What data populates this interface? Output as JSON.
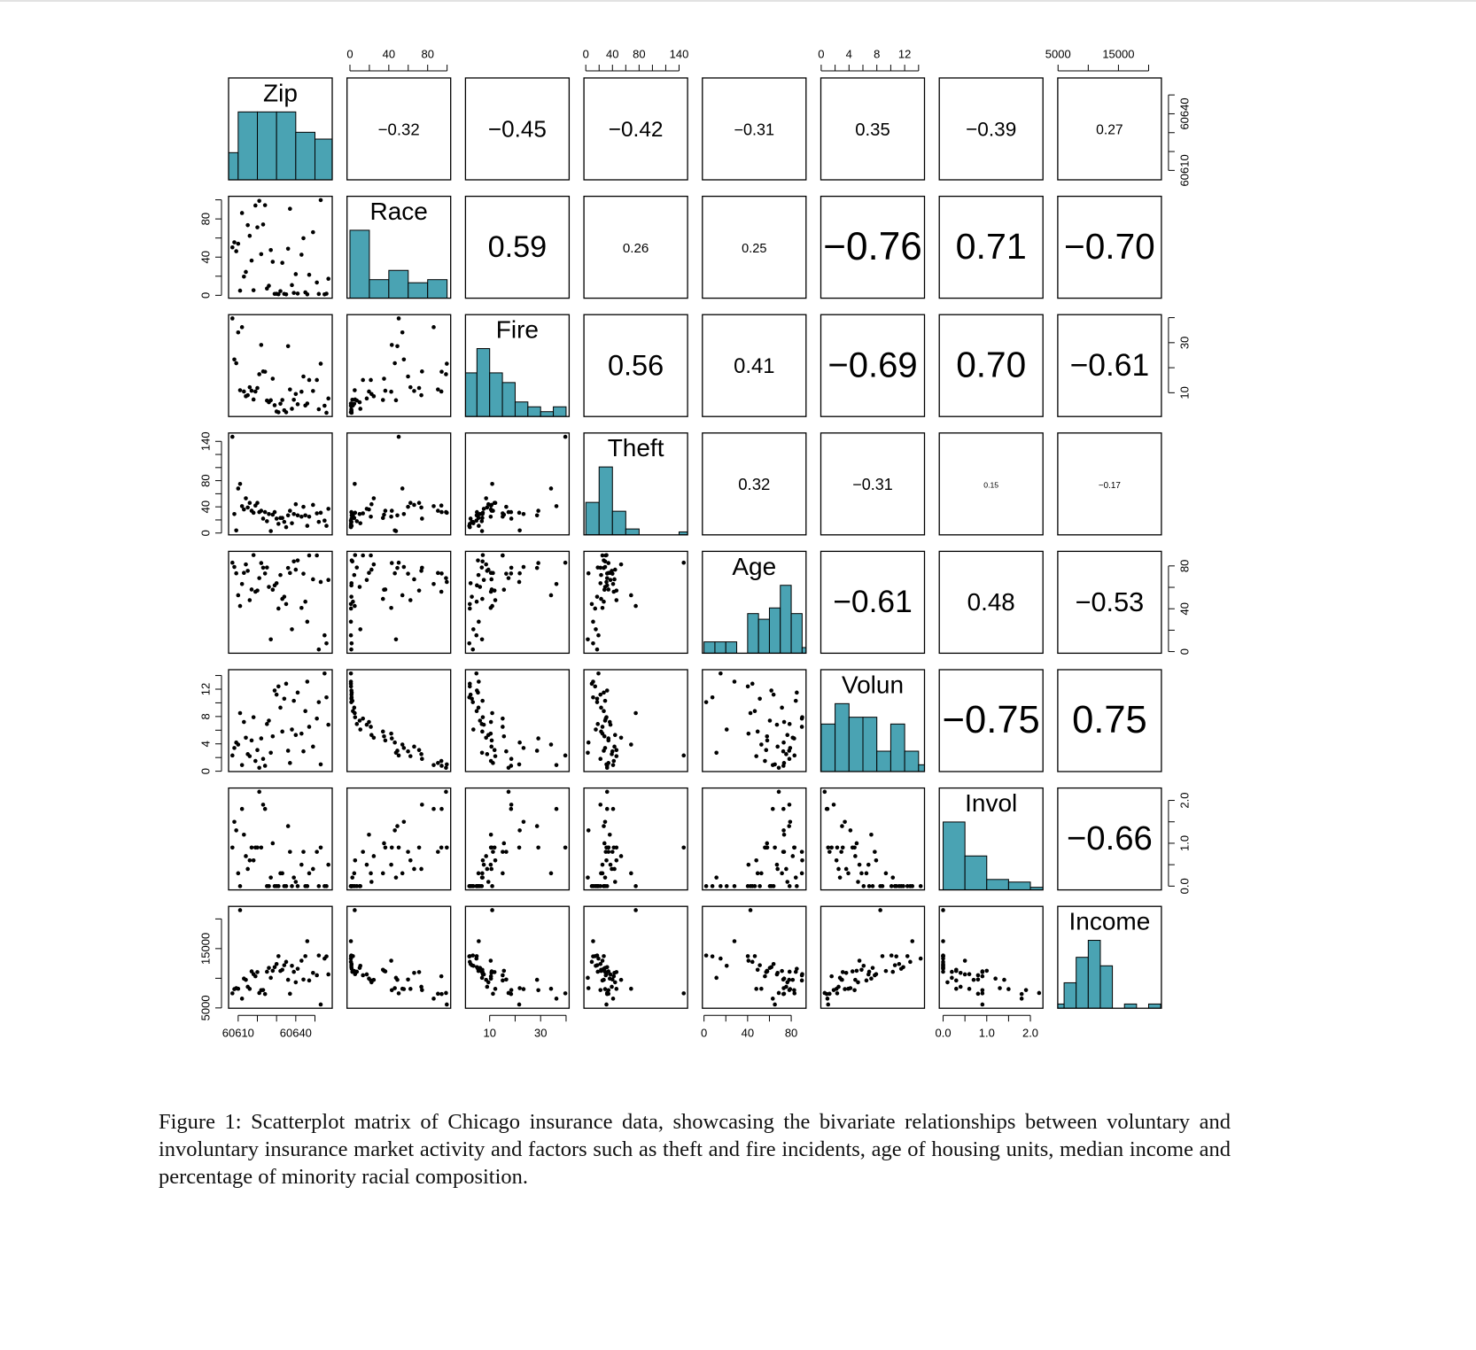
{
  "chart_data": {
    "type": "scatter_matrix",
    "caption": "Figure 1: Scatterplot matrix of Chicago insurance data, showcasing the bivariate relationships between voluntary and involuntary insurance market activity and factors such as theft and fire incidents, age of housing units, median income and percentage of minority racial composition.",
    "point_color": "#000000",
    "hist_color": "#4aa3b3",
    "variables": [
      {
        "name": "Zip",
        "lim": [
          60605,
          60659
        ],
        "ticks": [
          60610,
          60640
        ],
        "minor_ticks": [
          60620,
          60630,
          60650
        ],
        "values": [
          60626,
          60640,
          60613,
          60657,
          60614,
          60610,
          60611,
          60625,
          60618,
          60647,
          60622,
          60631,
          60646,
          60656,
          60630,
          60634,
          60641,
          60635,
          60639,
          60651,
          60644,
          60624,
          60612,
          60607,
          60623,
          60608,
          60616,
          60632,
          60609,
          60653,
          60615,
          60638,
          60629,
          60636,
          60621,
          60637,
          60652,
          60620,
          60619,
          60649,
          60617,
          60655,
          60643,
          60628,
          60627,
          60633,
          60645
        ],
        "hist": {
          "bins": [
            60600,
            60610,
            60620,
            60630,
            60640,
            60650,
            60660
          ],
          "counts": [
            4,
            10,
            10,
            10,
            7,
            6
          ]
        }
      },
      {
        "name": "Race",
        "lim": [
          -3,
          103.7
        ],
        "ticks": [
          0,
          40,
          80
        ],
        "minor_ticks": [
          20,
          60,
          100
        ],
        "values": [
          10.0,
          22.2,
          19.6,
          17.3,
          24.5,
          54.0,
          4.9,
          7.1,
          5.3,
          21.5,
          43.1,
          1.1,
          1.0,
          1.7,
          1.6,
          1.5,
          1.8,
          1.0,
          2.5,
          13.4,
          59.8,
          94.4,
          86.2,
          50.2,
          74.2,
          55.5,
          62.3,
          4.4,
          46.2,
          99.7,
          73.5,
          10.7,
          1.5,
          48.8,
          98.9,
          90.6,
          1.4,
          71.2,
          94.1,
          66.1,
          36.4,
          1.0,
          42.5,
          35.1,
          47.4,
          34.0,
          3.1
        ],
        "hist": {
          "bins": [
            0,
            20,
            40,
            60,
            80,
            100
          ],
          "counts": [
            22,
            6,
            9,
            5,
            6
          ]
        }
      },
      {
        "name": "Fire",
        "lim": [
          0.5,
          41.2
        ],
        "ticks": [
          10,
          30
        ],
        "minor_ticks": [
          20,
          40
        ],
        "values": [
          6.2,
          9.5,
          10.5,
          7.7,
          8.6,
          34.1,
          11.0,
          6.9,
          7.3,
          15.1,
          29.1,
          2.2,
          5.7,
          2.0,
          2.5,
          3.0,
          5.4,
          2.2,
          7.2,
          15.1,
          16.5,
          18.4,
          36.2,
          39.7,
          18.5,
          23.3,
          12.2,
          5.6,
          21.8,
          21.6,
          9.0,
          3.6,
          5.0,
          28.6,
          17.4,
          11.3,
          3.4,
          11.9,
          10.5,
          10.7,
          10.8,
          4.8,
          10.4,
          15.6,
          7.0,
          7.1,
          4.9
        ],
        "hist": {
          "bins": [
            0,
            5,
            10,
            15,
            20,
            25,
            30,
            35,
            40
          ],
          "counts": [
            9,
            14,
            9,
            7,
            3,
            2,
            1,
            2
          ]
        }
      },
      {
        "name": "Theft",
        "lim": [
          -2.8,
          152.8
        ],
        "ticks": [
          0,
          40,
          80,
          140
        ],
        "minor_ticks": [
          20,
          60,
          100,
          120
        ],
        "values": [
          29,
          44,
          36,
          37,
          53,
          68,
          75,
          18,
          31,
          25,
          34,
          14,
          11,
          11,
          22,
          17,
          27,
          9,
          29,
          30,
          40,
          32,
          41,
          147,
          22,
          29,
          46,
          23,
          4,
          31,
          39,
          15,
          32,
          27,
          32,
          34,
          17,
          46,
          42,
          43,
          34,
          19,
          25,
          28,
          3,
          23,
          27
        ],
        "hist": {
          "bins": [
            0,
            20,
            40,
            60,
            80,
            100,
            120,
            140,
            160
          ],
          "counts": [
            11,
            23,
            8,
            2,
            0,
            0,
            0,
            1
          ]
        }
      },
      {
        "name": "Age",
        "lim": [
          -1.5,
          93.6
        ],
        "ticks": [
          0,
          40,
          80
        ],
        "minor_ticks": [
          20,
          60
        ],
        "values": [
          60.4,
          76.5,
          73.5,
          66.9,
          81.4,
          52.6,
          42.6,
          78.5,
          90.1,
          89.8,
          82.7,
          40.2,
          27.9,
          7.7,
          63.8,
          51.2,
          85.1,
          44.4,
          84.2,
          89.8,
          72.7,
          72.9,
          63.1,
          83.0,
          78.3,
          79.0,
          48.0,
          71.5,
          73.1,
          65.0,
          75.4,
          20.8,
          61.8,
          78.1,
          68.6,
          73.4,
          2.0,
          57.0,
          55.9,
          67.5,
          58.0,
          15.2,
          40.8,
          57.8,
          11.4,
          49.2,
          46.6
        ],
        "hist": {
          "bins": [
            0,
            10,
            20,
            30,
            40,
            50,
            60,
            70,
            80,
            90,
            100
          ],
          "counts": [
            2,
            2,
            2,
            0,
            7,
            6,
            8,
            12,
            7,
            1
          ]
        }
      },
      {
        "name": "Volun",
        "lim": [
          -0.05,
          14.85
        ],
        "ticks": [
          0,
          4,
          8,
          12
        ],
        "minor_ticks": [
          2,
          6,
          10,
          14
        ],
        "values": [
          7.4,
          5.3,
          7.2,
          6.8,
          4.9,
          3.9,
          8.5,
          6.9,
          7.9,
          6.5,
          4.8,
          12.4,
          13.1,
          10.8,
          11.2,
          10.6,
          11.5,
          12.8,
          10.3,
          7.7,
          2.9,
          0.8,
          0.9,
          2.3,
          1.8,
          3.4,
          2.2,
          9.3,
          4.2,
          1.0,
          2.5,
          6.1,
          11.8,
          3.0,
          0.5,
          1.2,
          10.1,
          3.1,
          1.5,
          3.6,
          4.5,
          14.3,
          5.5,
          5.1,
          2.7,
          5.8,
          8.8
        ],
        "hist": {
          "bins": [
            0,
            2,
            4,
            6,
            8,
            10,
            12,
            14,
            16
          ],
          "counts": [
            7,
            10,
            8,
            8,
            3,
            7,
            3,
            1
          ]
        }
      },
      {
        "name": "Invol",
        "lim": [
          -0.088,
          2.288
        ],
        "ticks": [
          {
            "value": 0,
            "label": "0.0"
          },
          {
            "value": 1,
            "label": "1.0"
          },
          {
            "value": 2,
            "label": "2.0"
          }
        ],
        "minor_ticks": [
          0.5,
          1.5
        ],
        "values": [
          0.0,
          0.1,
          1.2,
          0.5,
          0.7,
          0.3,
          0.0,
          0.0,
          0.6,
          0.3,
          0.9,
          0.0,
          0.0,
          0.0,
          0.0,
          0.0,
          0.0,
          0.0,
          0.2,
          0.8,
          0.8,
          1.8,
          1.8,
          0.9,
          1.9,
          1.5,
          0.6,
          0.3,
          1.3,
          0.9,
          0.4,
          0.0,
          0.0,
          1.4,
          2.2,
          0.8,
          0.0,
          0.9,
          0.9,
          0.4,
          0.9,
          0.0,
          0.5,
          1.0,
          0.2,
          0.3,
          0.0
        ],
        "hist": {
          "bins": [
            0,
            0.5,
            1,
            1.5,
            2,
            2.5
          ],
          "counts": [
            26,
            13,
            4,
            3,
            1
          ]
        }
      },
      {
        "name": "Income",
        "lim": [
          4947,
          22116
        ],
        "ticks": [
          5000,
          15000
        ],
        "minor_ticks": [
          10000,
          20000
        ],
        "values": [
          11744,
          9323,
          9948,
          10656,
          9730,
          8231,
          21480,
          11104,
          10694,
          9631,
          7995,
          13722,
          16250,
          13686,
          12405,
          12198,
          11600,
          12765,
          11084,
          10510,
          9784,
          7342,
          6565,
          7459,
          8014,
          8177,
          8212,
          11230,
          8330,
          5583,
          8564,
          12102,
          11876,
          9742,
          7520,
          7388,
          13842,
          11040,
          10332,
          10908,
          11156,
          13323,
          12960,
          11260,
          10080,
          11428,
          13731
        ],
        "hist": {
          "bins": [
            4000,
            6000,
            8000,
            10000,
            12000,
            14000,
            16000,
            18000,
            20000,
            22000
          ],
          "counts": [
            1,
            6,
            12,
            16,
            10,
            0,
            1,
            0,
            1
          ]
        }
      }
    ],
    "correlations": [
      [
        -0.32,
        -0.45,
        -0.42,
        -0.31,
        0.35,
        -0.39,
        0.27
      ],
      [
        0.59,
        0.26,
        0.25,
        -0.76,
        0.71,
        -0.7
      ],
      [
        0.56,
        0.41,
        -0.69,
        0.7,
        -0.61
      ],
      [
        0.32,
        -0.31,
        0.15,
        -0.17
      ],
      [
        -0.61,
        0.48,
        -0.53
      ],
      [
        -0.75,
        0.75
      ],
      [
        -0.66
      ]
    ],
    "correlation_labels": [
      [
        "−0.32",
        "−0.45",
        "−0.42",
        "−0.31",
        "0.35",
        "−0.39",
        "0.27"
      ],
      [
        "0.59",
        "0.26",
        "0.25",
        "−0.76",
        "0.71",
        "−0.70"
      ],
      [
        "0.56",
        "0.41",
        "−0.69",
        "0.70",
        "−0.61"
      ],
      [
        "0.32",
        "−0.31",
        "0.15",
        "−0.17"
      ],
      [
        "−0.61",
        "0.48",
        "−0.53"
      ],
      [
        "−0.75",
        "0.75"
      ],
      [
        "−0.66"
      ]
    ]
  }
}
